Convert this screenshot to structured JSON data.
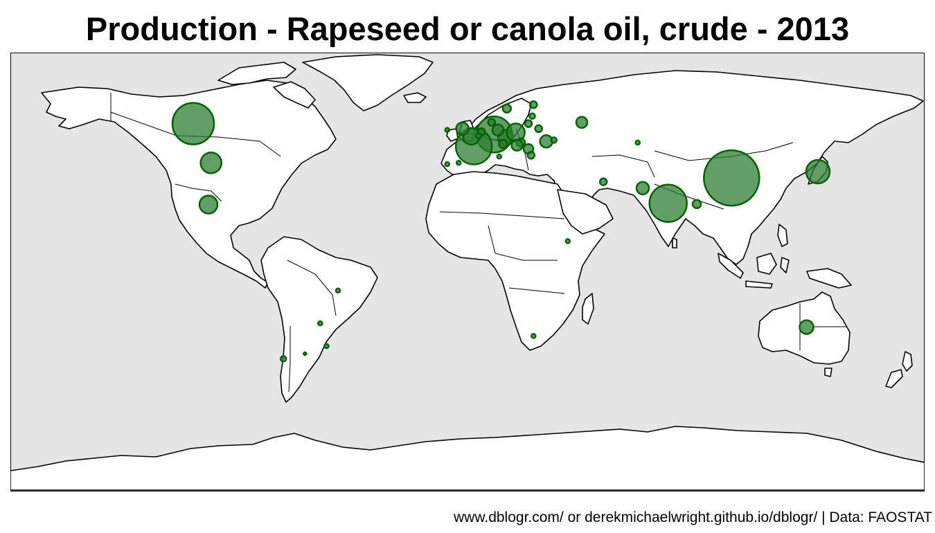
{
  "title": "Production - Rapeseed or canola oil, crude - 2013",
  "caption": "www.dblogr.com/ or derekmichaelwright.github.io/dblogr/ | Data: FAOSTAT",
  "colors": {
    "ocean": "#e5e5e5",
    "land": "#ffffff",
    "outline": "#000000",
    "bubble_fill": "#2e7d32",
    "bubble_stroke": "#006400"
  },
  "chart_data": {
    "type": "map",
    "projection": "equirectangular",
    "lon_range": [
      -180,
      180
    ],
    "lat_range": [
      -90,
      83.6
    ],
    "marker": "proportional-circle",
    "points": [
      {
        "lon": -108,
        "lat": 55.5,
        "r": 30
      },
      {
        "lon": -101,
        "lat": 40,
        "r": 15
      },
      {
        "lon": -102,
        "lat": 23.5,
        "r": 13
      },
      {
        "lon": 10.5,
        "lat": 51.2,
        "r": 26
      },
      {
        "lon": 2.5,
        "lat": 46.5,
        "r": 26
      },
      {
        "lon": 1.5,
        "lat": 50.5,
        "r": 12
      },
      {
        "lon": 15,
        "lat": 50,
        "r": 11
      },
      {
        "lon": 19,
        "lat": 52,
        "r": 13
      },
      {
        "lon": 12,
        "lat": 53,
        "r": 8
      },
      {
        "lon": 14,
        "lat": 47.5,
        "r": 6
      },
      {
        "lon": 21,
        "lat": 48,
        "r": 6
      },
      {
        "lon": 19.5,
        "lat": 47,
        "r": 8
      },
      {
        "lon": 24,
        "lat": 45.5,
        "r": 7
      },
      {
        "lon": 25,
        "lat": 43,
        "r": 5
      },
      {
        "lon": 31,
        "lat": 48.5,
        "r": 9
      },
      {
        "lon": 28,
        "lat": 53.5,
        "r": 5
      },
      {
        "lon": 24,
        "lat": 55.5,
        "r": 5
      },
      {
        "lon": 25.5,
        "lat": 58.5,
        "r": 4
      },
      {
        "lon": 26,
        "lat": 63,
        "r": 5
      },
      {
        "lon": 15.5,
        "lat": 61.5,
        "r": 6
      },
      {
        "lon": 9.5,
        "lat": 56,
        "r": 5
      },
      {
        "lon": -2,
        "lat": 53.5,
        "r": 9
      },
      {
        "lon": -8,
        "lat": 53,
        "r": 3
      },
      {
        "lon": 5.5,
        "lat": 52.3,
        "r": 5
      },
      {
        "lon": 4.5,
        "lat": 50.7,
        "r": 4
      },
      {
        "lon": -3.5,
        "lat": 40,
        "r": 3
      },
      {
        "lon": -8,
        "lat": 39.5,
        "r": 3
      },
      {
        "lon": 12.5,
        "lat": 42.5,
        "r": 3
      },
      {
        "lon": 34,
        "lat": 49,
        "r": 4
      },
      {
        "lon": 45,
        "lat": 56,
        "r": 8
      },
      {
        "lon": 67,
        "lat": 48,
        "r": 3
      },
      {
        "lon": 53.5,
        "lat": 32.5,
        "r": 5
      },
      {
        "lon": 69,
        "lat": 30,
        "r": 9
      },
      {
        "lon": 79,
        "lat": 24,
        "r": 27
      },
      {
        "lon": 90.3,
        "lat": 23.7,
        "r": 6
      },
      {
        "lon": 104,
        "lat": 34,
        "r": 40
      },
      {
        "lon": 138,
        "lat": 36.5,
        "r": 17
      },
      {
        "lon": 133.5,
        "lat": -25,
        "r": 10
      },
      {
        "lon": 39.5,
        "lat": 9,
        "r": 3
      },
      {
        "lon": 26,
        "lat": -28.5,
        "r": 3
      },
      {
        "lon": -51,
        "lat": -10.5,
        "r": 3
      },
      {
        "lon": -58,
        "lat": -23.5,
        "r": 3
      },
      {
        "lon": -72.5,
        "lat": -37.5,
        "r": 4
      },
      {
        "lon": -55.5,
        "lat": -32.5,
        "r": 3
      },
      {
        "lon": -64,
        "lat": -35.5,
        "r": 2
      }
    ]
  }
}
